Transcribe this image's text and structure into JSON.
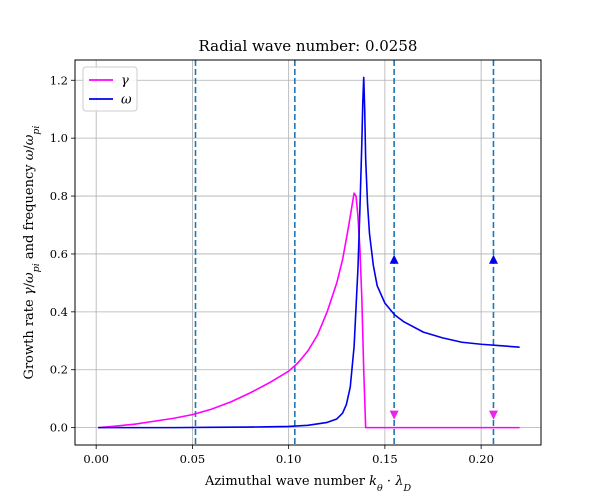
{
  "chart_data": {
    "type": "line",
    "title": "Radial wave number: 0.0258",
    "xlabel_parts": [
      "Azimuthal wave number ",
      "k",
      "θ",
      " · ",
      "λ",
      "D"
    ],
    "ylabel_parts": [
      "Growth rate ",
      "γ",
      "/",
      "ω",
      "pi",
      " and frequency ",
      "ω",
      "/",
      "ω",
      "pi"
    ],
    "xlim": [
      -0.011,
      0.2311
    ],
    "ylim": [
      -0.06,
      1.27
    ],
    "xticks": [
      0.0,
      0.05,
      0.1,
      0.15,
      0.2
    ],
    "xtick_labels": [
      "0.00",
      "0.05",
      "0.10",
      "0.15",
      "0.20"
    ],
    "yticks": [
      0.0,
      0.2,
      0.4,
      0.6,
      0.8,
      1.0,
      1.2
    ],
    "ytick_labels": [
      "0.0",
      "0.2",
      "0.4",
      "0.6",
      "0.8",
      "1.0",
      "1.2"
    ],
    "grid": true,
    "legend": {
      "placement": "top-left",
      "entries": [
        {
          "label": "γ",
          "color": "#ff00ff"
        },
        {
          "label": "ω",
          "color": "#0000ee"
        }
      ]
    },
    "series": [
      {
        "name": "γ",
        "color": "#ff00ff",
        "x": [
          0.001,
          0.01,
          0.02,
          0.03,
          0.04,
          0.05,
          0.06,
          0.07,
          0.08,
          0.09,
          0.1,
          0.105,
          0.11,
          0.115,
          0.12,
          0.125,
          0.128,
          0.131,
          0.133,
          0.134,
          0.135,
          0.136,
          0.137,
          0.138,
          0.139,
          0.14,
          0.15,
          0.16,
          0.17,
          0.18,
          0.19,
          0.2,
          0.21,
          0.22
        ],
        "y": [
          0.0,
          0.005,
          0.012,
          0.022,
          0.032,
          0.045,
          0.064,
          0.089,
          0.12,
          0.155,
          0.195,
          0.225,
          0.265,
          0.32,
          0.4,
          0.5,
          0.58,
          0.69,
          0.77,
          0.81,
          0.8,
          0.73,
          0.62,
          0.45,
          0.2,
          0.0,
          0.0,
          0.0,
          0.0,
          0.0,
          0.0,
          0.0,
          0.0,
          0.0
        ]
      },
      {
        "name": "ω",
        "color": "#0000ee",
        "x": [
          0.001,
          0.02,
          0.04,
          0.06,
          0.08,
          0.1,
          0.11,
          0.12,
          0.125,
          0.128,
          0.13,
          0.132,
          0.134,
          0.136,
          0.137,
          0.138,
          0.1385,
          0.139,
          0.1395,
          0.14,
          0.141,
          0.142,
          0.144,
          0.146,
          0.15,
          0.155,
          0.16,
          0.17,
          0.18,
          0.19,
          0.2,
          0.21,
          0.22
        ],
        "y": [
          0.0,
          0.0,
          0.0,
          0.001,
          0.002,
          0.004,
          0.008,
          0.018,
          0.03,
          0.05,
          0.08,
          0.14,
          0.28,
          0.55,
          0.75,
          0.98,
          1.12,
          1.21,
          1.1,
          0.93,
          0.77,
          0.67,
          0.56,
          0.49,
          0.43,
          0.39,
          0.365,
          0.33,
          0.31,
          0.295,
          0.288,
          0.283,
          0.278
        ]
      }
    ],
    "vlines": {
      "color": "#1f77b4",
      "style": "dashed",
      "x": [
        0.0516,
        0.1032,
        0.1548,
        0.2064
      ]
    },
    "markers": {
      "up": {
        "color": "#0000ee",
        "points": [
          [
            0.1548,
            0.58
          ],
          [
            0.2064,
            0.58
          ]
        ]
      },
      "down": {
        "color": "#ee22ee",
        "points": [
          [
            0.1548,
            0.045
          ],
          [
            0.2064,
            0.045
          ]
        ]
      }
    }
  }
}
